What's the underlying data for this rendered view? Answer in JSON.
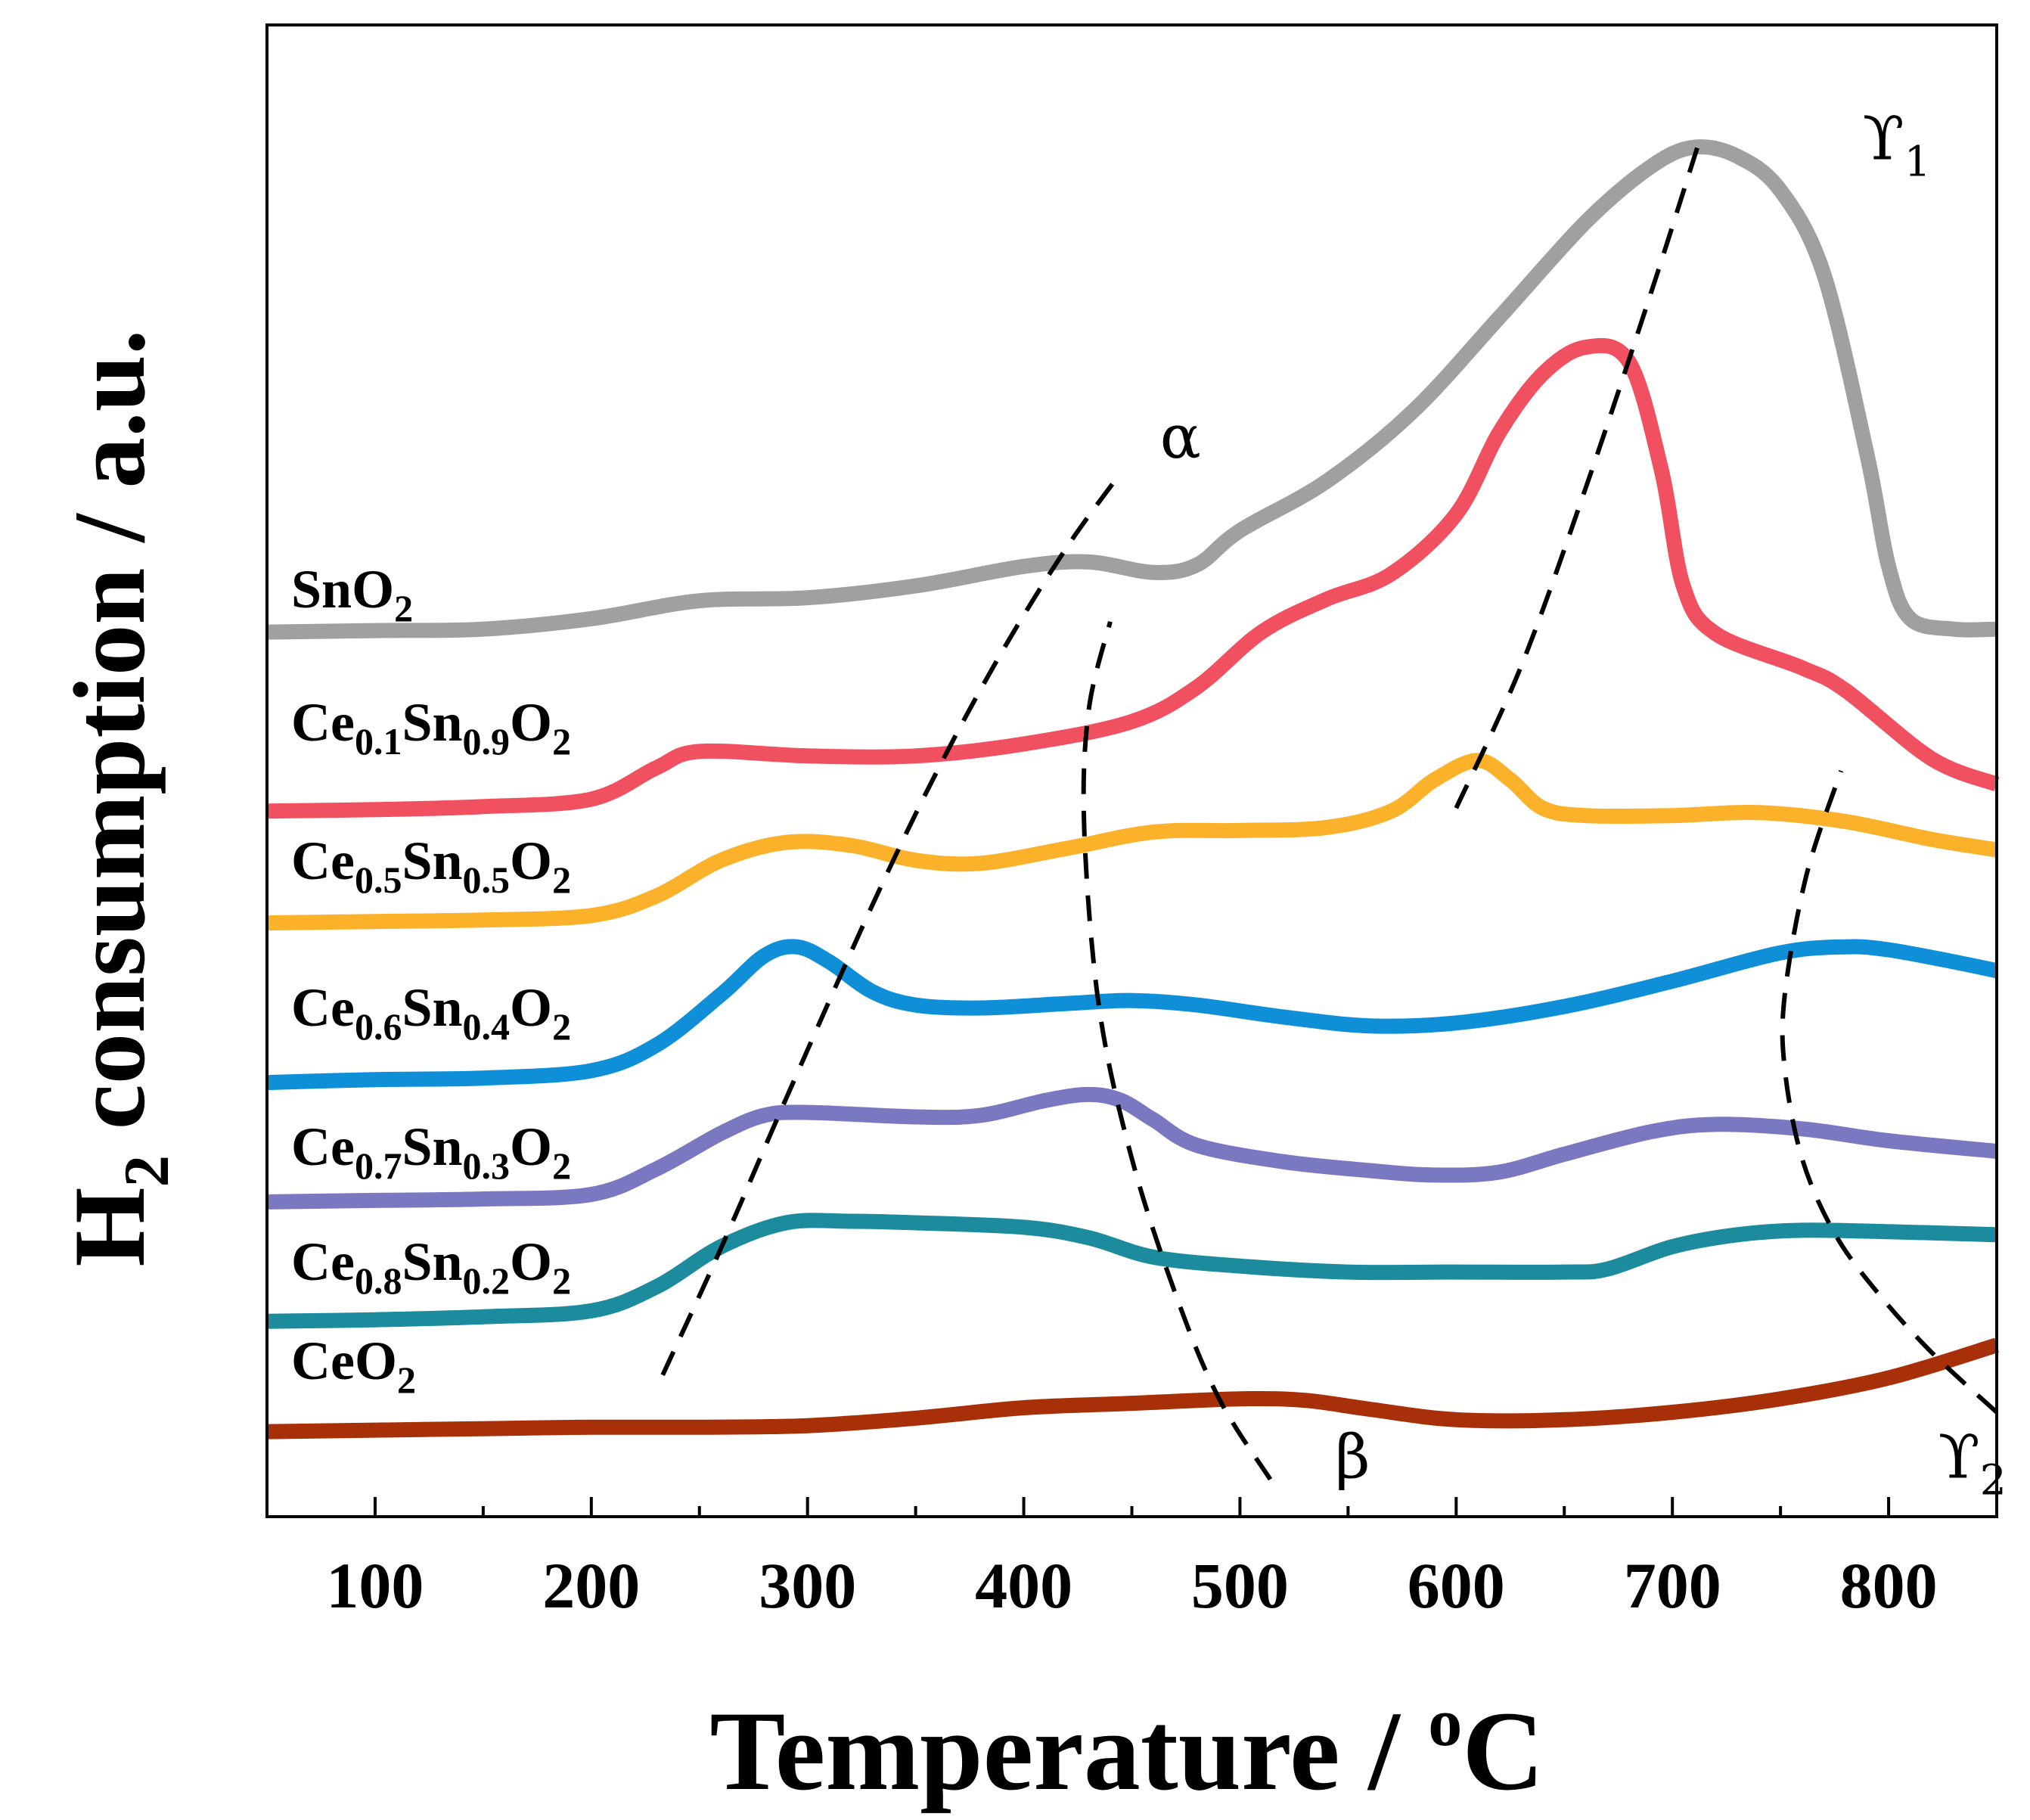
{
  "chart_data": {
    "type": "line",
    "title": "",
    "xlabel": "Temperature / oC",
    "ylabel": "H2 consumption / a.u.",
    "xlim": [
      50,
      850
    ],
    "ylim": [
      0,
      100
    ],
    "x_ticks": [
      100,
      200,
      300,
      400,
      500,
      600,
      700,
      800
    ],
    "grid": false,
    "legend": "inline labels on left",
    "series": [
      {
        "name": "SnO2",
        "label_parts": [
          [
            "SnO",
            "n"
          ],
          [
            "2",
            "sub"
          ]
        ],
        "color": "#a0a0a0",
        "points": [
          [
            50,
            59.3
          ],
          [
            100,
            59.4
          ],
          [
            150,
            59.5
          ],
          [
            200,
            60.2
          ],
          [
            250,
            61.4
          ],
          [
            300,
            61.6
          ],
          [
            350,
            62.4
          ],
          [
            400,
            63.7
          ],
          [
            430,
            64.0
          ],
          [
            460,
            63.3
          ],
          [
            480,
            63.8
          ],
          [
            500,
            66.1
          ],
          [
            540,
            69.4
          ],
          [
            580,
            74.1
          ],
          [
            620,
            80.4
          ],
          [
            660,
            86.8
          ],
          [
            690,
            90.5
          ],
          [
            710,
            91.8
          ],
          [
            730,
            91.2
          ],
          [
            750,
            88.9
          ],
          [
            770,
            83.3
          ],
          [
            790,
            71.2
          ],
          [
            800,
            63.7
          ],
          [
            810,
            60.2
          ],
          [
            830,
            59.5
          ],
          [
            850,
            59.5
          ]
        ]
      },
      {
        "name": "Ce0.1Sn0.9O2",
        "label_parts": [
          [
            "Ce",
            "n"
          ],
          [
            "0.1",
            "sub"
          ],
          [
            "Sn",
            "n"
          ],
          [
            "0.9",
            "sub"
          ],
          [
            "O",
            "n"
          ],
          [
            "2",
            "sub"
          ]
        ],
        "color": "#f0505f",
        "points": [
          [
            50,
            47.3
          ],
          [
            100,
            47.4
          ],
          [
            150,
            47.6
          ],
          [
            200,
            48.1
          ],
          [
            230,
            50.2
          ],
          [
            250,
            51.3
          ],
          [
            300,
            51.0
          ],
          [
            350,
            51.0
          ],
          [
            400,
            51.8
          ],
          [
            450,
            53.3
          ],
          [
            480,
            55.6
          ],
          [
            510,
            59.3
          ],
          [
            540,
            61.5
          ],
          [
            570,
            63.2
          ],
          [
            600,
            67.2
          ],
          [
            620,
            72.7
          ],
          [
            640,
            76.6
          ],
          [
            660,
            78.4
          ],
          [
            680,
            77.4
          ],
          [
            695,
            70.1
          ],
          [
            705,
            62.4
          ],
          [
            720,
            59.2
          ],
          [
            760,
            56.9
          ],
          [
            780,
            55.4
          ],
          [
            820,
            50.8
          ],
          [
            850,
            49.1
          ]
        ]
      },
      {
        "name": "Ce0.5Sn0.5O2",
        "label_parts": [
          [
            "Ce",
            "n"
          ],
          [
            "0.5",
            "sub"
          ],
          [
            "Sn",
            "n"
          ],
          [
            "0.5",
            "sub"
          ],
          [
            "O",
            "n"
          ],
          [
            "2",
            "sub"
          ]
        ],
        "color": "#fbb12a",
        "points": [
          [
            50,
            39.8
          ],
          [
            100,
            39.9
          ],
          [
            150,
            40.0
          ],
          [
            200,
            40.3
          ],
          [
            230,
            41.6
          ],
          [
            260,
            44.0
          ],
          [
            290,
            45.2
          ],
          [
            320,
            45.0
          ],
          [
            350,
            44.0
          ],
          [
            380,
            43.8
          ],
          [
            420,
            44.8
          ],
          [
            460,
            45.9
          ],
          [
            500,
            46.0
          ],
          [
            540,
            46.2
          ],
          [
            570,
            47.3
          ],
          [
            590,
            49.4
          ],
          [
            610,
            50.7
          ],
          [
            625,
            49.4
          ],
          [
            640,
            47.5
          ],
          [
            660,
            47.0
          ],
          [
            700,
            47.0
          ],
          [
            740,
            47.2
          ],
          [
            780,
            46.6
          ],
          [
            820,
            45.4
          ],
          [
            850,
            44.7
          ]
        ]
      },
      {
        "name": "Ce0.6Sn0.4O2",
        "label_parts": [
          [
            "Ce",
            "n"
          ],
          [
            "0.6",
            "sub"
          ],
          [
            "Sn",
            "n"
          ],
          [
            "0.4",
            "sub"
          ],
          [
            "O",
            "n"
          ],
          [
            "2",
            "sub"
          ]
        ],
        "color": "#0e8fd7",
        "points": [
          [
            50,
            29.1
          ],
          [
            100,
            29.3
          ],
          [
            150,
            29.4
          ],
          [
            200,
            29.9
          ],
          [
            230,
            31.6
          ],
          [
            260,
            35.0
          ],
          [
            280,
            37.6
          ],
          [
            295,
            38.2
          ],
          [
            310,
            37.2
          ],
          [
            330,
            35.2
          ],
          [
            350,
            34.3
          ],
          [
            380,
            34.1
          ],
          [
            420,
            34.4
          ],
          [
            450,
            34.6
          ],
          [
            480,
            34.3
          ],
          [
            520,
            33.5
          ],
          [
            560,
            32.9
          ],
          [
            600,
            33.1
          ],
          [
            650,
            34.2
          ],
          [
            700,
            35.9
          ],
          [
            750,
            37.8
          ],
          [
            780,
            38.2
          ],
          [
            800,
            38.0
          ],
          [
            830,
            37.2
          ],
          [
            850,
            36.6
          ]
        ]
      },
      {
        "name": "Ce0.7Sn0.3O2",
        "label_parts": [
          [
            "Ce",
            "n"
          ],
          [
            "0.7",
            "sub"
          ],
          [
            "Sn",
            "n"
          ],
          [
            "0.3",
            "sub"
          ],
          [
            "O",
            "n"
          ],
          [
            "2",
            "sub"
          ]
        ],
        "color": "#7b78c2",
        "points": [
          [
            50,
            21.1
          ],
          [
            100,
            21.2
          ],
          [
            150,
            21.3
          ],
          [
            200,
            21.6
          ],
          [
            230,
            23.3
          ],
          [
            260,
            25.7
          ],
          [
            280,
            26.9
          ],
          [
            300,
            27.1
          ],
          [
            350,
            26.8
          ],
          [
            380,
            26.9
          ],
          [
            410,
            27.9
          ],
          [
            430,
            28.3
          ],
          [
            445,
            27.9
          ],
          [
            460,
            26.6
          ],
          [
            480,
            24.9
          ],
          [
            520,
            23.8
          ],
          [
            560,
            23.2
          ],
          [
            590,
            22.9
          ],
          [
            620,
            23.1
          ],
          [
            650,
            24.3
          ],
          [
            690,
            25.8
          ],
          [
            720,
            26.3
          ],
          [
            760,
            26.0
          ],
          [
            800,
            25.2
          ],
          [
            850,
            24.5
          ]
        ]
      },
      {
        "name": "Ce0.8Sn0.2O2",
        "label_parts": [
          [
            "Ce",
            "n"
          ],
          [
            "0.8",
            "sub"
          ],
          [
            "Sn",
            "n"
          ],
          [
            "0.2",
            "sub"
          ],
          [
            "O",
            "n"
          ],
          [
            "2",
            "sub"
          ]
        ],
        "color": "#1d8b9e",
        "points": [
          [
            50,
            13.1
          ],
          [
            100,
            13.2
          ],
          [
            150,
            13.4
          ],
          [
            200,
            13.8
          ],
          [
            230,
            15.4
          ],
          [
            260,
            18.1
          ],
          [
            290,
            19.7
          ],
          [
            320,
            19.8
          ],
          [
            350,
            19.7
          ],
          [
            400,
            19.4
          ],
          [
            430,
            18.7
          ],
          [
            460,
            17.4
          ],
          [
            500,
            16.8
          ],
          [
            550,
            16.4
          ],
          [
            600,
            16.4
          ],
          [
            650,
            16.4
          ],
          [
            670,
            16.6
          ],
          [
            700,
            18.1
          ],
          [
            730,
            18.9
          ],
          [
            760,
            19.2
          ],
          [
            800,
            19.1
          ],
          [
            850,
            18.9
          ]
        ]
      },
      {
        "name": "CeO2",
        "label_parts": [
          [
            "CeO",
            "n"
          ],
          [
            "2",
            "sub"
          ]
        ],
        "color": "#a83008",
        "points": [
          [
            50,
            5.7
          ],
          [
            100,
            5.8
          ],
          [
            150,
            5.9
          ],
          [
            200,
            6.0
          ],
          [
            250,
            6.0
          ],
          [
            300,
            6.1
          ],
          [
            350,
            6.6
          ],
          [
            400,
            7.3
          ],
          [
            450,
            7.6
          ],
          [
            500,
            7.9
          ],
          [
            530,
            7.8
          ],
          [
            560,
            7.2
          ],
          [
            600,
            6.5
          ],
          [
            650,
            6.5
          ],
          [
            700,
            7.0
          ],
          [
            750,
            7.9
          ],
          [
            800,
            9.3
          ],
          [
            850,
            11.5
          ]
        ]
      }
    ],
    "guide_lines": [
      {
        "name": "alpha",
        "label": "α",
        "points": [
          [
            233,
            9.5
          ],
          [
            260,
            18
          ],
          [
            290,
            28
          ],
          [
            330,
            41
          ],
          [
            360,
            50
          ],
          [
            390,
            58
          ],
          [
            420,
            65
          ],
          [
            445,
            70
          ]
        ]
      },
      {
        "name": "beta",
        "label": "β",
        "points": [
          [
            514,
            2.5
          ],
          [
            490,
            8
          ],
          [
            470,
            15
          ],
          [
            450,
            24
          ],
          [
            435,
            34
          ],
          [
            428,
            46
          ],
          [
            430,
            54
          ],
          [
            440,
            60
          ]
        ]
      },
      {
        "name": "gamma1",
        "label": "ϒ1",
        "points": [
          [
            600,
            47.5
          ],
          [
            630,
            57
          ],
          [
            660,
            69
          ],
          [
            690,
            82
          ],
          [
            712,
            92
          ]
        ]
      },
      {
        "name": "gamma2",
        "label": "ϒ2",
        "points": [
          [
            850,
            7
          ],
          [
            820,
            11
          ],
          [
            795,
            15
          ],
          [
            775,
            19
          ],
          [
            760,
            24
          ],
          [
            752,
            30
          ],
          [
            752,
            35
          ],
          [
            762,
            43
          ],
          [
            778,
            50
          ]
        ]
      }
    ],
    "annotations": [
      {
        "name": "alpha",
        "text": "α",
        "x": 463,
        "y": 71
      },
      {
        "name": "beta",
        "text": "β",
        "x": 544,
        "y": 2.6
      },
      {
        "name": "gamma1",
        "text": "ϒ",
        "sub": "1",
        "x": 788,
        "y": 91
      },
      {
        "name": "gamma2",
        "text": "ϒ",
        "sub": "2",
        "x": 823,
        "y": 2.6
      }
    ]
  }
}
